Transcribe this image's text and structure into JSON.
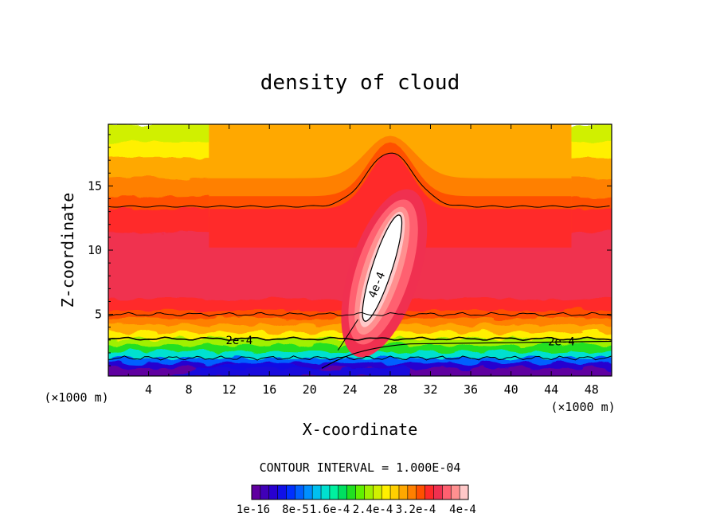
{
  "chart_data": {
    "type": "heatmap",
    "title": "density of cloud",
    "xlabel": "X-coordinate",
    "ylabel": "Z-coordinate",
    "x_unit": "(×1000 m)",
    "xlim": [
      0,
      50
    ],
    "ylim": [
      0.2,
      19.8
    ],
    "x_ticks": [
      4,
      8,
      12,
      16,
      20,
      24,
      28,
      32,
      36,
      40,
      44,
      48
    ],
    "x_tick_labels": [
      "4",
      "8",
      "12",
      "16",
      "20",
      "24",
      "28",
      "32",
      "36",
      "40",
      "44",
      "48"
    ],
    "y_ticks": [
      5,
      10,
      15
    ],
    "y_tick_labels": [
      "5",
      "10",
      "15"
    ],
    "contour_interval_text": "CONTOUR INTERVAL = 1.000E-04",
    "contour_labels": [
      {
        "text": "2e-4",
        "x": 13.0,
        "y": 3.0
      },
      {
        "text": "2e-4",
        "x": 45.0,
        "y": 2.9
      },
      {
        "text": "4e-4",
        "x": 27.0,
        "y": 7.5
      }
    ],
    "colorbar": {
      "min": 1e-16,
      "max": 0.00044,
      "labels": [
        "1e-16",
        "8e-5",
        "1.6e-4",
        "2.4e-4",
        "3.2e-4",
        "4e-4"
      ],
      "colors": [
        "#6000a0",
        "#4000b8",
        "#2800d0",
        "#1010e8",
        "#0030ff",
        "#0060ff",
        "#0090ff",
        "#00c0f0",
        "#00e0d0",
        "#00f0a0",
        "#00e060",
        "#20e020",
        "#60f000",
        "#a0f000",
        "#d0f000",
        "#fff000",
        "#ffd000",
        "#ffa800",
        "#ff8000",
        "#ff5000",
        "#ff2a2a",
        "#f03050",
        "#ff6070",
        "#ff9090",
        "#ffc8c8"
      ]
    }
  }
}
